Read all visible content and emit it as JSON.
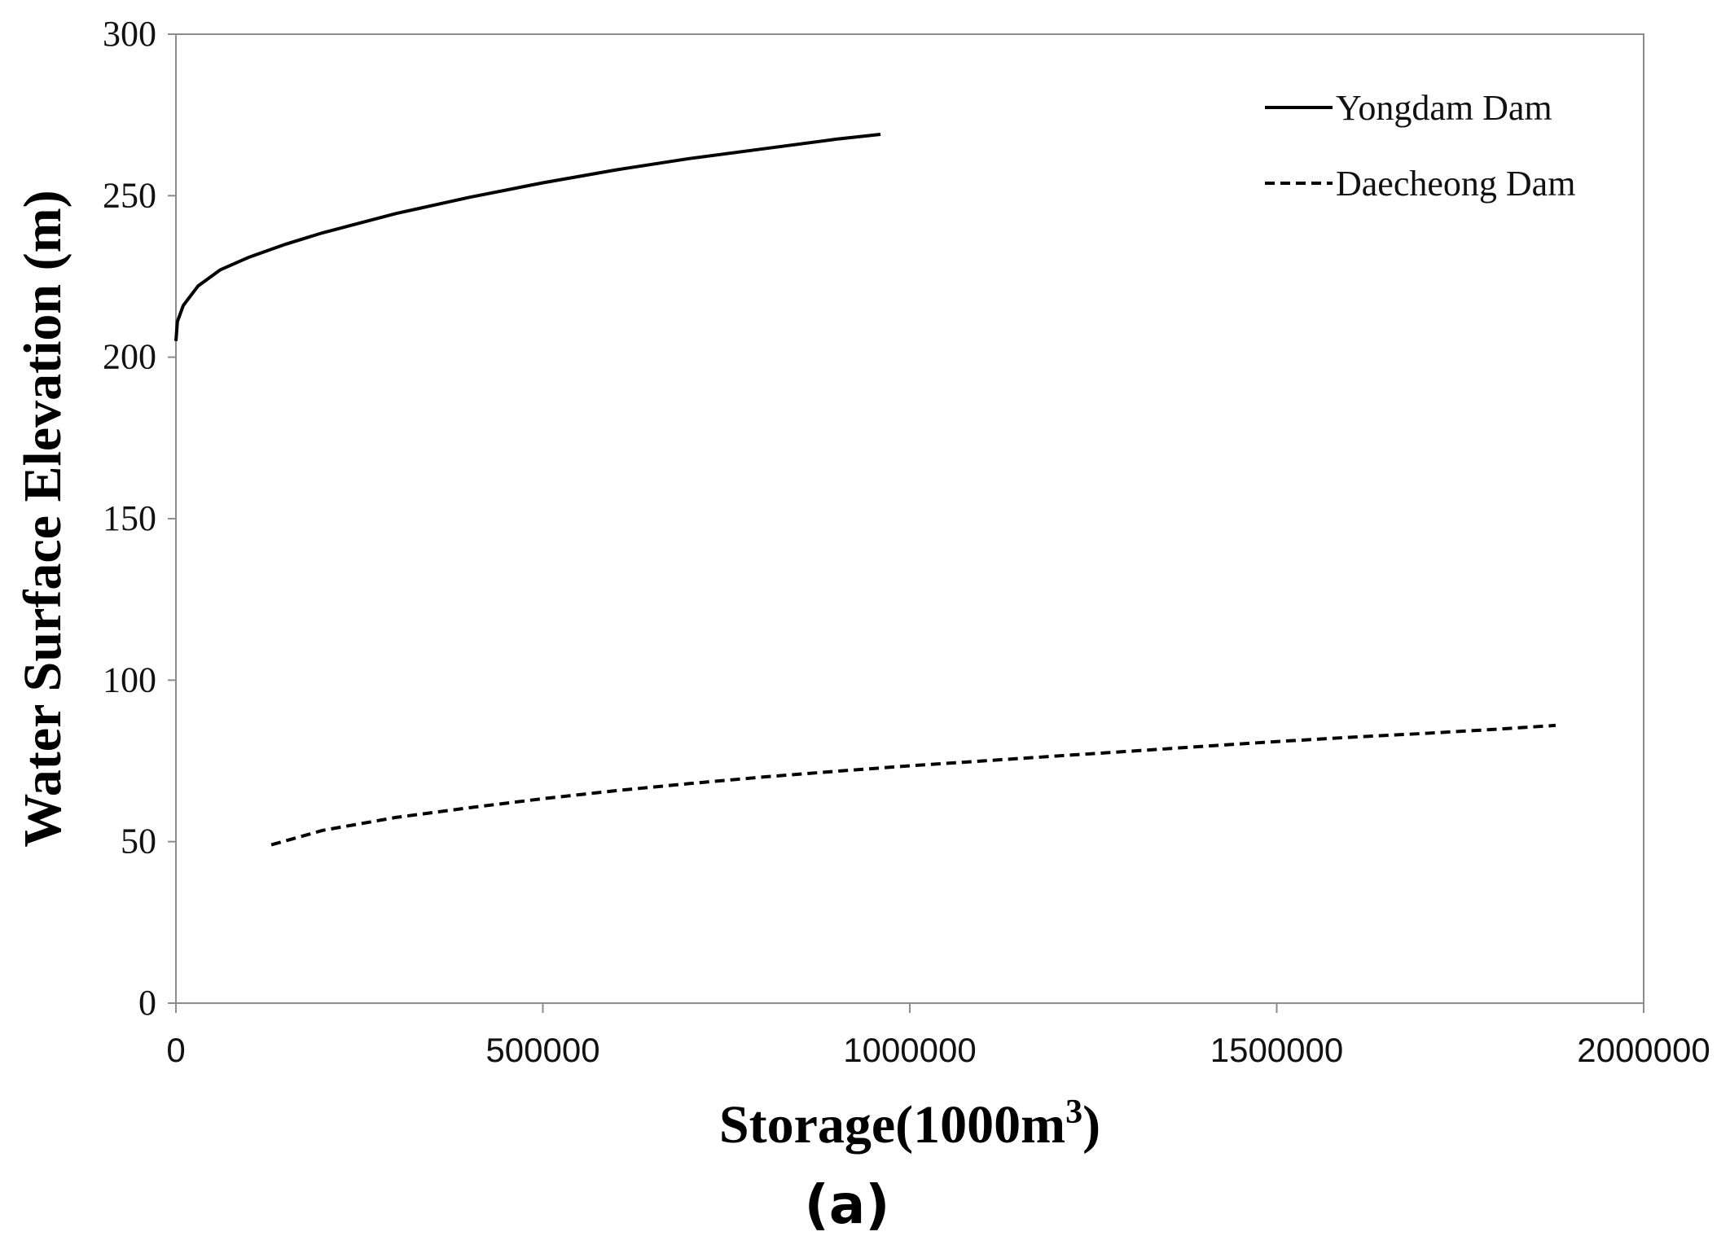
{
  "chart_data": {
    "type": "line",
    "title": "",
    "xlabel_main": "Storage(1000m",
    "xlabel_sup": "3",
    "xlabel_end": ")",
    "ylabel": "Water Surface Elevation (m)",
    "panel_label": "(a)",
    "xlim": [
      0,
      2000000
    ],
    "ylim": [
      0,
      300
    ],
    "xticks": [
      0,
      500000,
      1000000,
      1500000,
      2000000
    ],
    "xtick_labels": [
      "0",
      "500000",
      "1000000",
      "1500000",
      "2000000"
    ],
    "yticks": [
      0,
      50,
      100,
      150,
      200,
      250,
      300
    ],
    "ytick_labels": [
      "0",
      "50",
      "100",
      "150",
      "200",
      "250",
      "300"
    ],
    "grid": false,
    "legend_position": "top-right",
    "series": [
      {
        "name": "Yongdam Dam",
        "style": "solid",
        "color": "#000000",
        "x": [
          0,
          2000,
          10000,
          30000,
          60000,
          100000,
          150000,
          200000,
          300000,
          400000,
          500000,
          600000,
          700000,
          800000,
          900000,
          960000
        ],
        "y": [
          205,
          211,
          216,
          222,
          227,
          231,
          235,
          238.5,
          244.5,
          249.5,
          254,
          258,
          261.5,
          264.5,
          267.5,
          269
        ]
      },
      {
        "name": "Daecheong Dam",
        "style": "dashed",
        "color": "#000000",
        "x": [
          130000,
          200000,
          300000,
          400000,
          500000,
          600000,
          700000,
          800000,
          900000,
          1000000,
          1100000,
          1200000,
          1300000,
          1400000,
          1500000,
          1600000,
          1700000,
          1800000,
          1880000
        ],
        "y": [
          49,
          53.5,
          57.5,
          60.5,
          63.3,
          65.8,
          68,
          70,
          71.8,
          73.5,
          75,
          76.5,
          78,
          79.5,
          81,
          82.3,
          83.5,
          84.8,
          86
        ]
      }
    ]
  }
}
